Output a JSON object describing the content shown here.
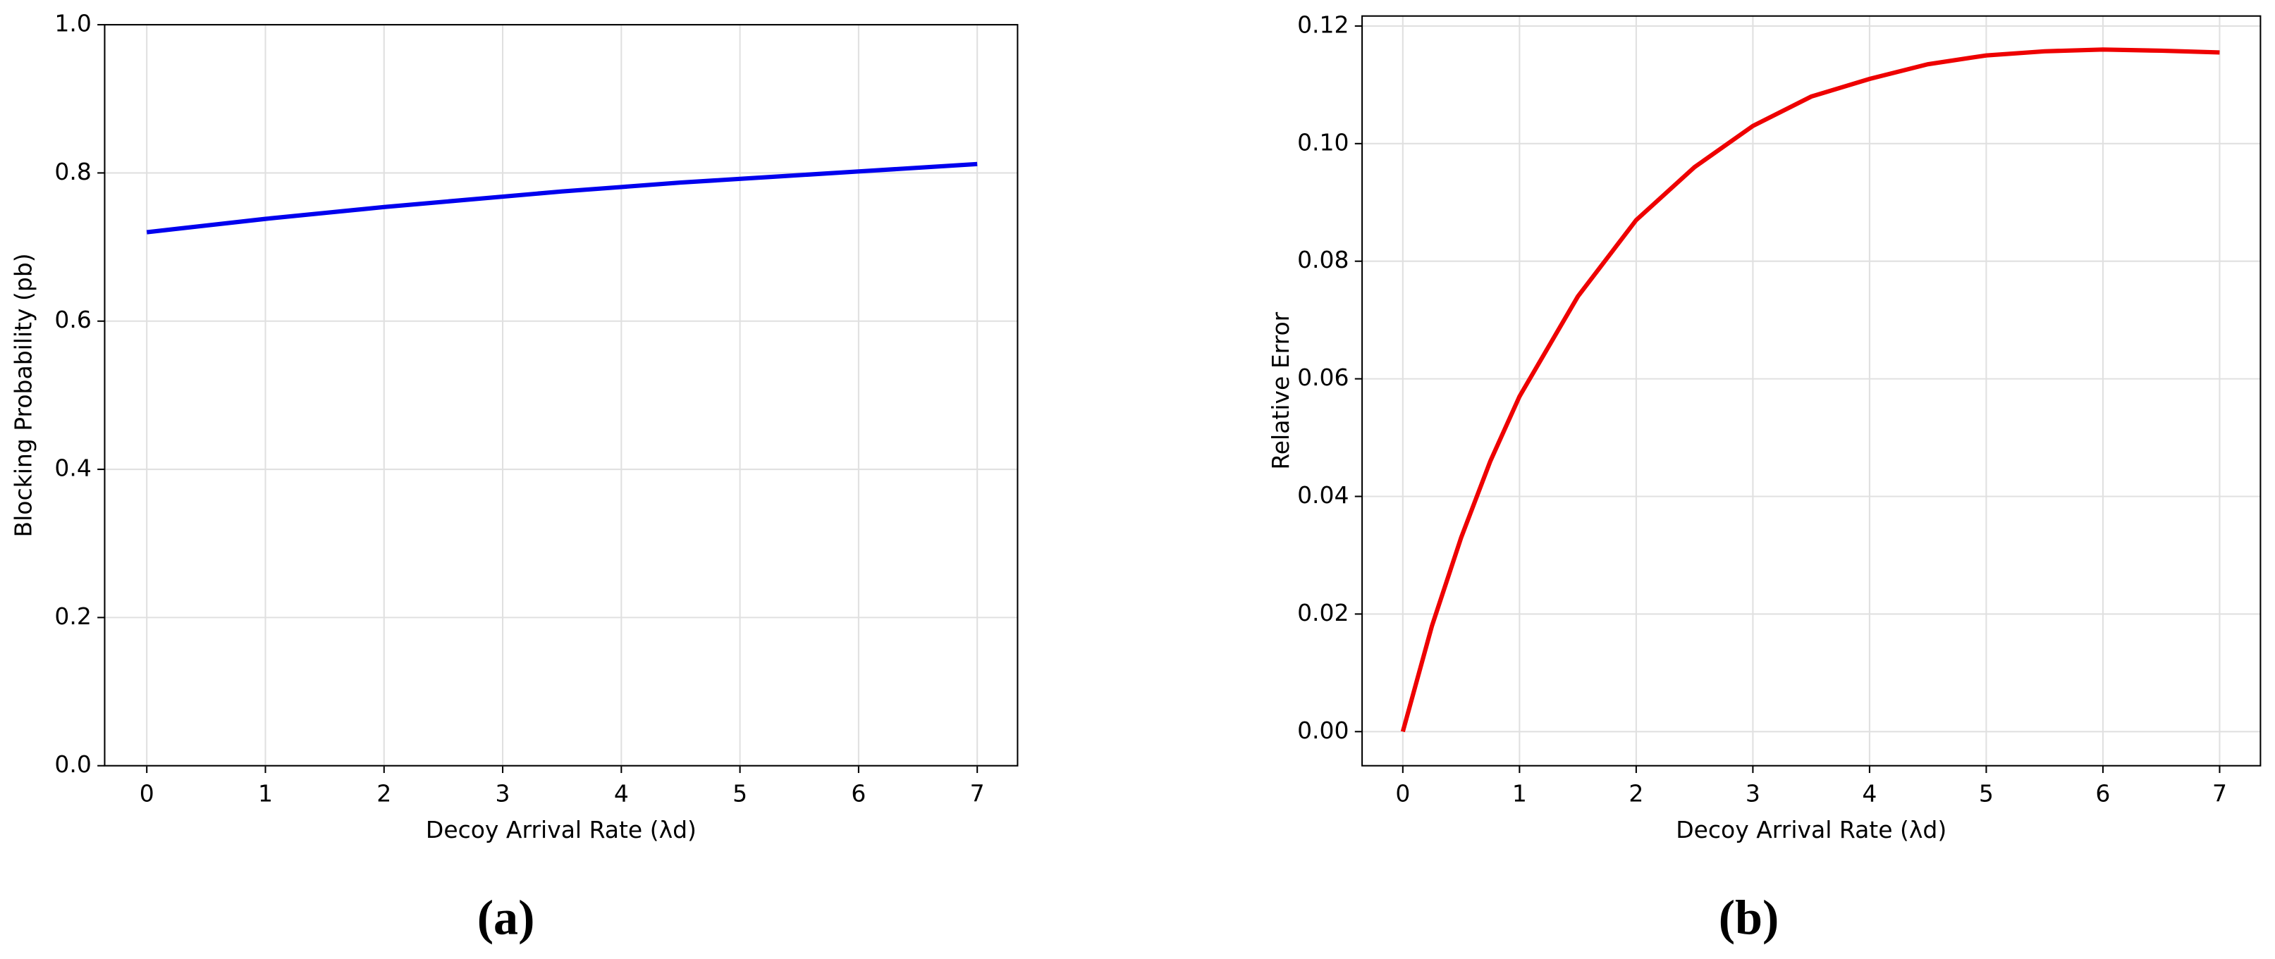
{
  "chart_data": [
    {
      "type": "line",
      "caption": "(a)",
      "xlabel": "Decoy Arrival Rate (λd)",
      "ylabel": "Blocking Probability (pb)",
      "x": [
        0,
        0.5,
        1,
        1.5,
        2,
        2.5,
        3,
        3.5,
        4,
        4.5,
        5,
        5.5,
        6,
        6.5,
        7
      ],
      "series": [
        {
          "color": "#0000ee",
          "values": [
            0.72,
            0.729,
            0.738,
            0.746,
            0.754,
            0.761,
            0.768,
            0.775,
            0.781,
            0.787,
            0.792,
            0.797,
            0.802,
            0.807,
            0.812
          ]
        }
      ],
      "xlim": [
        -0.355,
        7.34
      ],
      "ylim": [
        0,
        1
      ],
      "xticks": [
        0,
        1,
        2,
        3,
        4,
        5,
        6,
        7
      ],
      "yticks": [
        {
          "value": 0,
          "label": "0.0"
        },
        {
          "value": 0.2,
          "label": "0.2"
        },
        {
          "value": 0.4,
          "label": "0.4"
        },
        {
          "value": 0.6,
          "label": "0.6"
        },
        {
          "value": 0.8,
          "label": "0.8"
        },
        {
          "value": 1,
          "label": "1.0"
        }
      ],
      "grid": true
    },
    {
      "type": "line",
      "caption": "(b)",
      "xlabel": "Decoy Arrival Rate (λd)",
      "ylabel": "Relative Error",
      "x": [
        0,
        0.25,
        0.5,
        0.75,
        1,
        1.5,
        2,
        2.5,
        3,
        3.5,
        4,
        4.5,
        5,
        5.5,
        6,
        6.5,
        7
      ],
      "series": [
        {
          "color": "#ee0000",
          "values": [
            0,
            0.018,
            0.033,
            0.046,
            0.057,
            0.074,
            0.087,
            0.096,
            0.103,
            0.108,
            0.111,
            0.1135,
            0.115,
            0.1157,
            0.116,
            0.1158,
            0.1155
          ]
        }
      ],
      "xlim": [
        -0.349,
        7.35
      ],
      "ylim": [
        -0.0058,
        0.1217
      ],
      "xticks": [
        0,
        1,
        2,
        3,
        4,
        5,
        6,
        7
      ],
      "yticks": [
        {
          "value": 0,
          "label": "0.00"
        },
        {
          "value": 0.02,
          "label": "0.02"
        },
        {
          "value": 0.04,
          "label": "0.04"
        },
        {
          "value": 0.06,
          "label": "0.06"
        },
        {
          "value": 0.08,
          "label": "0.08"
        },
        {
          "value": 0.1,
          "label": "0.10"
        },
        {
          "value": 0.12,
          "label": "0.12"
        }
      ],
      "grid": true
    }
  ]
}
